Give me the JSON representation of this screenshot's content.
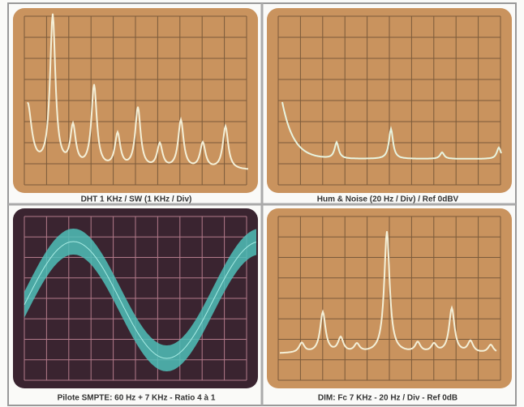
{
  "panels": [
    {
      "caption": "DHT 1 KHz / SW (1 KHz / Div)"
    },
    {
      "caption": "Hum & Noise (20 Hz / Div) / Ref 0dBV"
    },
    {
      "caption": "Pilote SMPTE: 60 Hz + 7 KHz - Ratio 4 à 1"
    },
    {
      "caption": "DIM: Fc 7 KHz - 20 Hz / Div - Ref 0dB"
    }
  ]
}
